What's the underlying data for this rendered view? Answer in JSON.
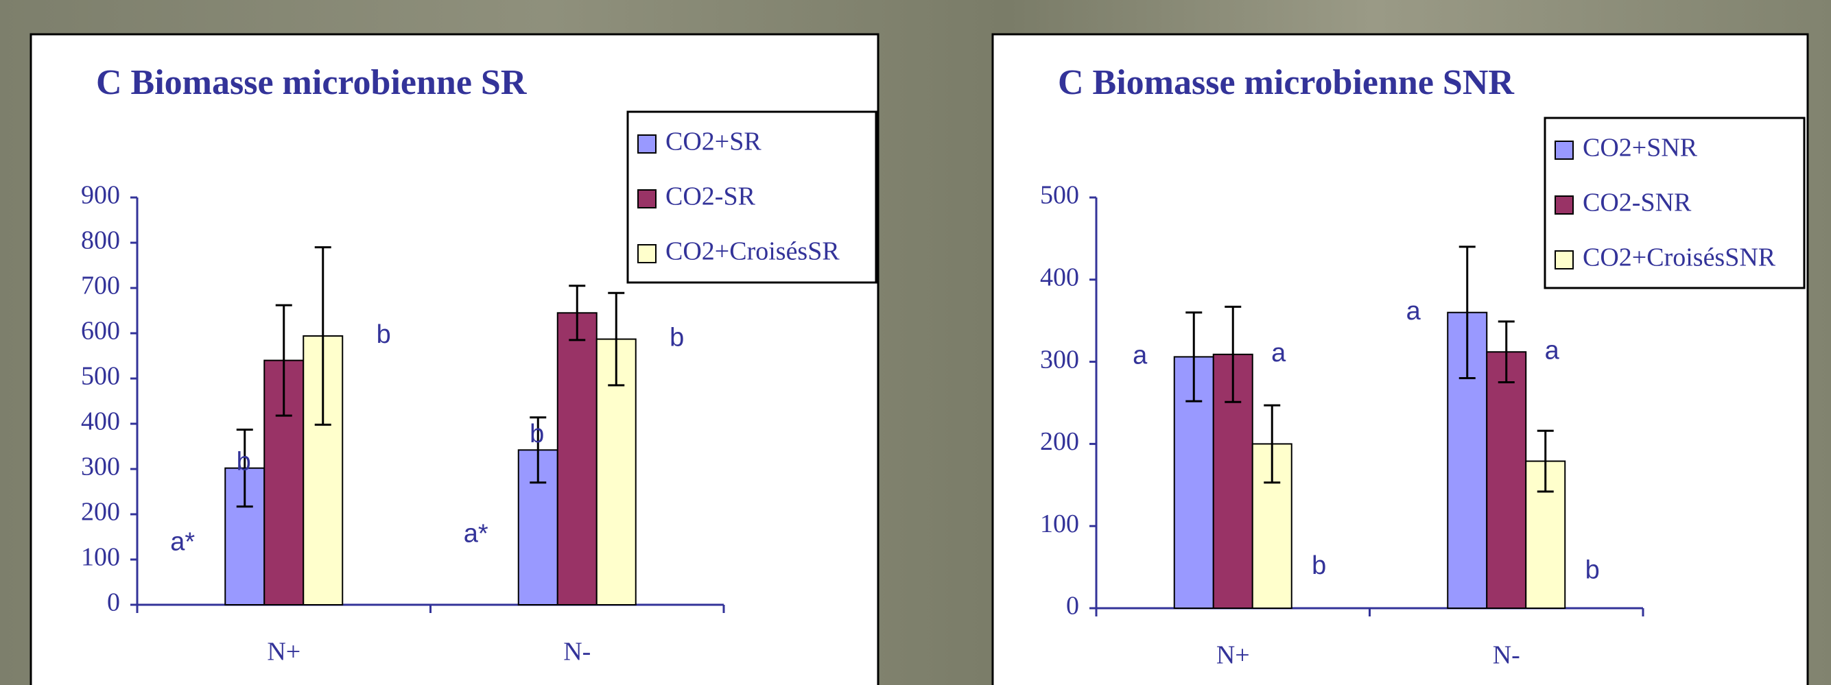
{
  "chart_data": [
    {
      "type": "bar",
      "title": "C Biomasse microbienne SR",
      "categories": [
        "N+",
        "N-"
      ],
      "series": [
        {
          "name": "CO2+SR",
          "color": "#9999ff",
          "values": [
            302,
            342
          ],
          "errors": [
            85,
            72
          ],
          "labels": [
            "a*",
            "a*"
          ]
        },
        {
          "name": "CO2-SR",
          "color": "#993366",
          "values": [
            540,
            645
          ],
          "errors": [
            122,
            60
          ],
          "labels": [
            "b",
            "b"
          ]
        },
        {
          "name": "CO2+CroisésSR",
          "color": "#ffffcc",
          "values": [
            594,
            587
          ],
          "errors": [
            196,
            102
          ],
          "labels": [
            "b",
            "b"
          ]
        }
      ],
      "ylim": [
        0,
        900
      ],
      "yticks": [
        0,
        100,
        200,
        300,
        400,
        500,
        600,
        700,
        800,
        900
      ]
    },
    {
      "type": "bar",
      "title": "C Biomasse microbienne SNR",
      "categories": [
        "N+",
        "N-"
      ],
      "series": [
        {
          "name": "CO2+SNR",
          "color": "#9999ff",
          "values": [
            306,
            360
          ],
          "errors": [
            54,
            80
          ],
          "labels": [
            "a",
            "a"
          ]
        },
        {
          "name": "CO2-SNR",
          "color": "#993366",
          "values": [
            309,
            312
          ],
          "errors": [
            58,
            37
          ],
          "labels": [
            "a",
            "a"
          ]
        },
        {
          "name": "CO2+CroisésSNR",
          "color": "#ffffcc",
          "values": [
            200,
            179
          ],
          "errors": [
            47,
            37
          ],
          "labels": [
            "b",
            "b"
          ]
        }
      ],
      "ylim": [
        0,
        500
      ],
      "yticks": [
        0,
        100,
        200,
        300,
        400,
        500
      ]
    }
  ]
}
